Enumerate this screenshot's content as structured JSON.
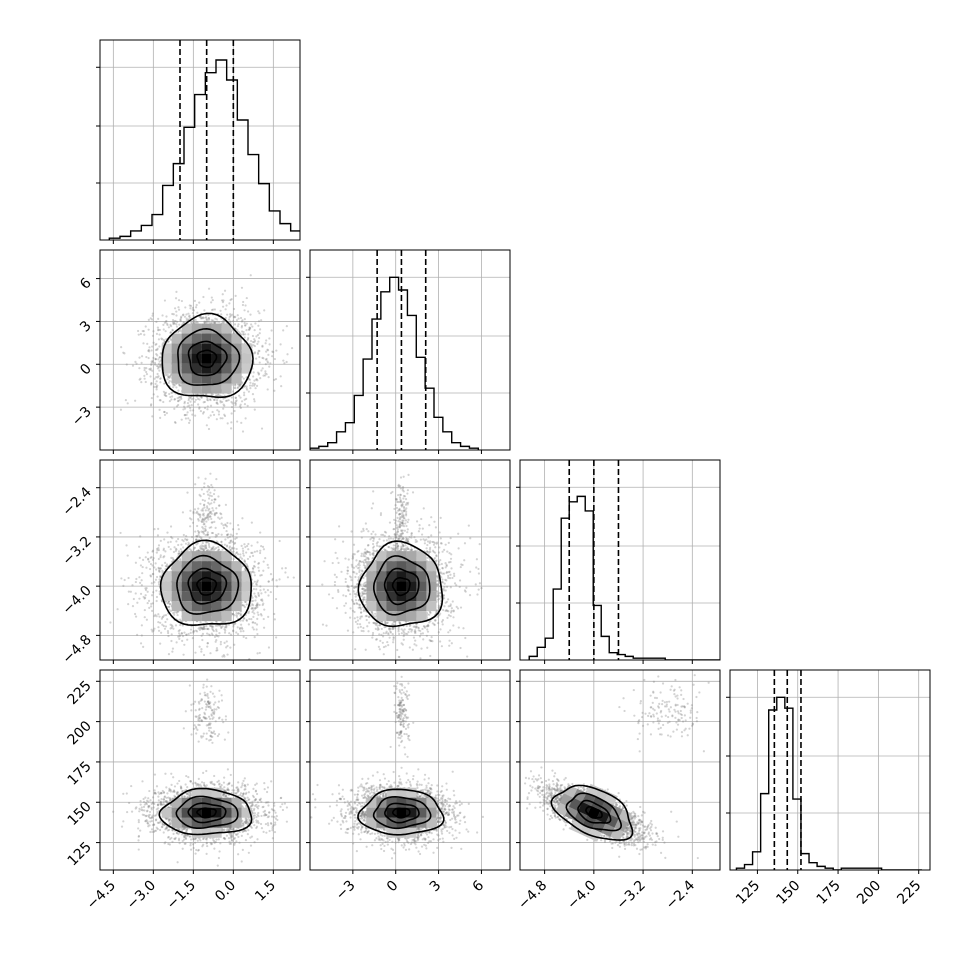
{
  "chart_data": {
    "type": "corner",
    "n_params": 4,
    "grid": true,
    "params": [
      {
        "range": [
          -5.0,
          2.5
        ],
        "ticks": [
          -4.5,
          -3.0,
          -1.5,
          0.0,
          1.5
        ],
        "tick_labels": [
          "−4.5",
          "−3.0",
          "−1.5",
          "0.0",
          "1.5"
        ],
        "quantiles": [
          -2.0,
          -1.0,
          0.0
        ],
        "hist": {
          "bin_start": -4.65,
          "bin_width": 0.4,
          "counts": [
            0.01,
            0.02,
            0.05,
            0.08,
            0.14,
            0.3,
            0.42,
            0.62,
            0.8,
            0.92,
            0.99,
            0.88,
            0.66,
            0.47,
            0.31,
            0.16,
            0.09,
            0.05,
            0.02,
            0.01
          ],
          "hist_max": 1.0
        }
      },
      {
        "range": [
          -6.0,
          8.0
        ],
        "ticks": [
          -3,
          0,
          3,
          6
        ],
        "tick_labels": [
          "−3",
          "0",
          "3",
          "6"
        ],
        "quantiles": [
          -1.3,
          0.4,
          2.1
        ],
        "hist": {
          "bin_start": -6.0,
          "bin_width": 0.62,
          "counts": [
            0.01,
            0.02,
            0.04,
            0.1,
            0.15,
            0.3,
            0.5,
            0.72,
            0.87,
            0.95,
            0.88,
            0.74,
            0.51,
            0.34,
            0.18,
            0.1,
            0.04,
            0.02,
            0.01
          ],
          "hist_max": 1.0
        }
      },
      {
        "range": [
          -5.2,
          -1.95
        ],
        "ticks": [
          -4.8,
          -4.0,
          -3.2,
          -2.4
        ],
        "tick_labels": [
          "−4.8",
          "−4.0",
          "−3.2",
          "−2.4"
        ],
        "quantiles": [
          -4.4,
          -4.0,
          -3.6
        ],
        "hist": {
          "bin_start": -5.05,
          "bin_width": 0.13,
          "counts": [
            0.02,
            0.07,
            0.12,
            0.39,
            0.78,
            0.87,
            0.9,
            0.82,
            0.3,
            0.13,
            0.04,
            0.03,
            0.02,
            0.01,
            0.01,
            0.01,
            0.01,
            0.0,
            0.0,
            0.0,
            0.0,
            0.0,
            0.0,
            0.0,
            0.0
          ],
          "hist_max": 1.0
        }
      },
      {
        "range": [
          108,
          232
        ],
        "ticks": [
          125,
          150,
          175,
          200,
          225
        ],
        "tick_labels": [
          "125",
          "150",
          "175",
          "200",
          "225"
        ],
        "quantiles": [
          135.5,
          143.5,
          152.0
        ],
        "hist": {
          "bin_start": 112,
          "bin_width": 5.0,
          "counts": [
            0.01,
            0.03,
            0.1,
            0.42,
            0.88,
            0.95,
            0.89,
            0.39,
            0.09,
            0.04,
            0.02,
            0.01,
            0.0,
            0.01,
            0.01,
            0.01,
            0.01,
            0.01,
            0.0,
            0.0,
            0.0,
            0.0,
            0.0
          ],
          "hist_max": 1.0
        }
      }
    ],
    "correlations": {
      "2_1": 0.0,
      "3_1": 0.0,
      "3_2": 0.0,
      "4_1": 0.0,
      "4_2": 0.0,
      "4_3": -0.7
    },
    "contour_levels": 4,
    "outlier_cluster": {
      "param_3_mean": -2.8,
      "param_3_sd": 0.3,
      "param_4_mean": 205,
      "param_4_sd": 10
    }
  },
  "colors": {
    "points": "#808080",
    "line": "#000000",
    "grid": "#b0b0b0"
  }
}
